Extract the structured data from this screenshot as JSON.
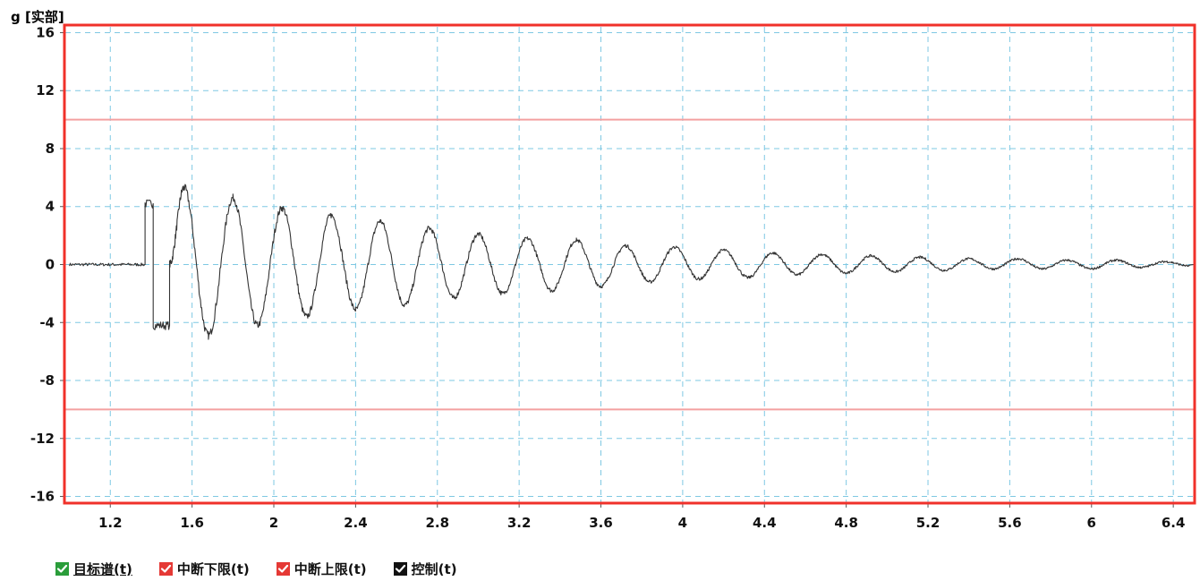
{
  "chart_data": {
    "type": "line",
    "ylabel": "g [实部]",
    "xlabel": "",
    "xlim": [
      0.98,
      6.5
    ],
    "ylim": [
      -16.4,
      16.4
    ],
    "x_ticks": [
      "1.2",
      "1.6",
      "2",
      "2.4",
      "2.8",
      "3.2",
      "3.6",
      "4",
      "4.4",
      "4.8",
      "5.2",
      "5.6",
      "6",
      "6.4"
    ],
    "y_ticks": [
      "16",
      "12",
      "8",
      "4",
      "0",
      "-4",
      "-8",
      "-12",
      "-16"
    ],
    "grid": true,
    "series": [
      {
        "name": "目标谱(t)",
        "color": "#2a9d3a",
        "values": []
      },
      {
        "name": "中断下限(t)",
        "color": "#f4a0a0",
        "constant": -10
      },
      {
        "name": "中断上限(t)",
        "color": "#f4a0a0",
        "constant": 10
      },
      {
        "name": "控制(t)",
        "color": "#333333",
        "pulse": {
          "start": 1.0,
          "positive_from": 1.37,
          "positive_value": 4.2,
          "negative_from": 1.41,
          "negative_value": -4.2,
          "end": 1.49
        },
        "oscillation": {
          "start": 1.49,
          "end": 6.5,
          "peaks": [
            {
              "x": 1.56,
              "y": 5.3
            },
            {
              "x": 1.68,
              "y": -4.9
            },
            {
              "x": 1.8,
              "y": 4.6
            },
            {
              "x": 1.92,
              "y": -4.2
            },
            {
              "x": 2.04,
              "y": 3.9
            },
            {
              "x": 2.16,
              "y": -3.6
            },
            {
              "x": 2.28,
              "y": 3.4
            },
            {
              "x": 2.4,
              "y": -3.1
            },
            {
              "x": 2.52,
              "y": 3.0
            },
            {
              "x": 2.64,
              "y": -2.8
            },
            {
              "x": 2.76,
              "y": 2.5
            },
            {
              "x": 2.88,
              "y": -2.3
            },
            {
              "x": 3.0,
              "y": 2.1
            },
            {
              "x": 3.12,
              "y": -2.0
            },
            {
              "x": 3.24,
              "y": 1.8
            },
            {
              "x": 3.36,
              "y": -1.8
            },
            {
              "x": 3.48,
              "y": 1.7
            },
            {
              "x": 3.6,
              "y": -1.5
            },
            {
              "x": 3.72,
              "y": 1.3
            },
            {
              "x": 3.84,
              "y": -1.2
            },
            {
              "x": 3.96,
              "y": 1.2
            },
            {
              "x": 4.08,
              "y": -1.0
            },
            {
              "x": 4.2,
              "y": 1.0
            },
            {
              "x": 4.32,
              "y": -0.9
            },
            {
              "x": 4.44,
              "y": 0.8
            },
            {
              "x": 4.56,
              "y": -0.7
            },
            {
              "x": 4.68,
              "y": 0.7
            },
            {
              "x": 4.8,
              "y": -0.6
            },
            {
              "x": 4.92,
              "y": 0.6
            },
            {
              "x": 5.04,
              "y": -0.5
            },
            {
              "x": 5.16,
              "y": 0.5
            },
            {
              "x": 5.28,
              "y": -0.4
            },
            {
              "x": 5.4,
              "y": 0.4
            },
            {
              "x": 5.52,
              "y": -0.3
            },
            {
              "x": 5.64,
              "y": 0.4
            },
            {
              "x": 5.76,
              "y": -0.3
            },
            {
              "x": 5.88,
              "y": 0.3
            },
            {
              "x": 6.0,
              "y": -0.3
            },
            {
              "x": 6.12,
              "y": 0.3
            },
            {
              "x": 6.24,
              "y": -0.2
            },
            {
              "x": 6.36,
              "y": 0.2
            },
            {
              "x": 6.48,
              "y": -0.1
            }
          ]
        }
      }
    ]
  },
  "legend": {
    "items": [
      {
        "label": "目标谱(t)",
        "checked": true,
        "color": "#2a9d3a",
        "underline": true
      },
      {
        "label": "中断下限(t)",
        "checked": true,
        "color": "#e53935",
        "underline": false
      },
      {
        "label": "中断上限(t)",
        "checked": true,
        "color": "#e53935",
        "underline": false
      },
      {
        "label": "控制(t)",
        "checked": true,
        "color": "#111111",
        "underline": false
      }
    ]
  },
  "colors": {
    "frame": "#f0312a",
    "grid": "#7ec8e3",
    "limit_line": "#f4a0a0",
    "trace": "#333333"
  }
}
